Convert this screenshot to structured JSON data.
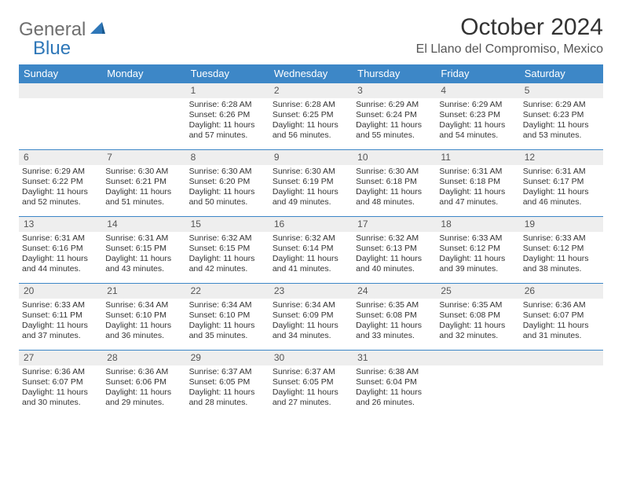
{
  "logo": {
    "word1": "General",
    "word2": "Blue"
  },
  "title": "October 2024",
  "location": "El Llano del Compromiso, Mexico",
  "header_bg": "#3d87c7",
  "daynum_bg": "#eeeeee",
  "weekdays": [
    "Sunday",
    "Monday",
    "Tuesday",
    "Wednesday",
    "Thursday",
    "Friday",
    "Saturday"
  ],
  "weeks": [
    [
      null,
      null,
      {
        "n": "1",
        "sr": "Sunrise: 6:28 AM",
        "ss": "Sunset: 6:26 PM",
        "d1": "Daylight: 11 hours",
        "d2": "and 57 minutes."
      },
      {
        "n": "2",
        "sr": "Sunrise: 6:28 AM",
        "ss": "Sunset: 6:25 PM",
        "d1": "Daylight: 11 hours",
        "d2": "and 56 minutes."
      },
      {
        "n": "3",
        "sr": "Sunrise: 6:29 AM",
        "ss": "Sunset: 6:24 PM",
        "d1": "Daylight: 11 hours",
        "d2": "and 55 minutes."
      },
      {
        "n": "4",
        "sr": "Sunrise: 6:29 AM",
        "ss": "Sunset: 6:23 PM",
        "d1": "Daylight: 11 hours",
        "d2": "and 54 minutes."
      },
      {
        "n": "5",
        "sr": "Sunrise: 6:29 AM",
        "ss": "Sunset: 6:23 PM",
        "d1": "Daylight: 11 hours",
        "d2": "and 53 minutes."
      }
    ],
    [
      {
        "n": "6",
        "sr": "Sunrise: 6:29 AM",
        "ss": "Sunset: 6:22 PM",
        "d1": "Daylight: 11 hours",
        "d2": "and 52 minutes."
      },
      {
        "n": "7",
        "sr": "Sunrise: 6:30 AM",
        "ss": "Sunset: 6:21 PM",
        "d1": "Daylight: 11 hours",
        "d2": "and 51 minutes."
      },
      {
        "n": "8",
        "sr": "Sunrise: 6:30 AM",
        "ss": "Sunset: 6:20 PM",
        "d1": "Daylight: 11 hours",
        "d2": "and 50 minutes."
      },
      {
        "n": "9",
        "sr": "Sunrise: 6:30 AM",
        "ss": "Sunset: 6:19 PM",
        "d1": "Daylight: 11 hours",
        "d2": "and 49 minutes."
      },
      {
        "n": "10",
        "sr": "Sunrise: 6:30 AM",
        "ss": "Sunset: 6:18 PM",
        "d1": "Daylight: 11 hours",
        "d2": "and 48 minutes."
      },
      {
        "n": "11",
        "sr": "Sunrise: 6:31 AM",
        "ss": "Sunset: 6:18 PM",
        "d1": "Daylight: 11 hours",
        "d2": "and 47 minutes."
      },
      {
        "n": "12",
        "sr": "Sunrise: 6:31 AM",
        "ss": "Sunset: 6:17 PM",
        "d1": "Daylight: 11 hours",
        "d2": "and 46 minutes."
      }
    ],
    [
      {
        "n": "13",
        "sr": "Sunrise: 6:31 AM",
        "ss": "Sunset: 6:16 PM",
        "d1": "Daylight: 11 hours",
        "d2": "and 44 minutes."
      },
      {
        "n": "14",
        "sr": "Sunrise: 6:31 AM",
        "ss": "Sunset: 6:15 PM",
        "d1": "Daylight: 11 hours",
        "d2": "and 43 minutes."
      },
      {
        "n": "15",
        "sr": "Sunrise: 6:32 AM",
        "ss": "Sunset: 6:15 PM",
        "d1": "Daylight: 11 hours",
        "d2": "and 42 minutes."
      },
      {
        "n": "16",
        "sr": "Sunrise: 6:32 AM",
        "ss": "Sunset: 6:14 PM",
        "d1": "Daylight: 11 hours",
        "d2": "and 41 minutes."
      },
      {
        "n": "17",
        "sr": "Sunrise: 6:32 AM",
        "ss": "Sunset: 6:13 PM",
        "d1": "Daylight: 11 hours",
        "d2": "and 40 minutes."
      },
      {
        "n": "18",
        "sr": "Sunrise: 6:33 AM",
        "ss": "Sunset: 6:12 PM",
        "d1": "Daylight: 11 hours",
        "d2": "and 39 minutes."
      },
      {
        "n": "19",
        "sr": "Sunrise: 6:33 AM",
        "ss": "Sunset: 6:12 PM",
        "d1": "Daylight: 11 hours",
        "d2": "and 38 minutes."
      }
    ],
    [
      {
        "n": "20",
        "sr": "Sunrise: 6:33 AM",
        "ss": "Sunset: 6:11 PM",
        "d1": "Daylight: 11 hours",
        "d2": "and 37 minutes."
      },
      {
        "n": "21",
        "sr": "Sunrise: 6:34 AM",
        "ss": "Sunset: 6:10 PM",
        "d1": "Daylight: 11 hours",
        "d2": "and 36 minutes."
      },
      {
        "n": "22",
        "sr": "Sunrise: 6:34 AM",
        "ss": "Sunset: 6:10 PM",
        "d1": "Daylight: 11 hours",
        "d2": "and 35 minutes."
      },
      {
        "n": "23",
        "sr": "Sunrise: 6:34 AM",
        "ss": "Sunset: 6:09 PM",
        "d1": "Daylight: 11 hours",
        "d2": "and 34 minutes."
      },
      {
        "n": "24",
        "sr": "Sunrise: 6:35 AM",
        "ss": "Sunset: 6:08 PM",
        "d1": "Daylight: 11 hours",
        "d2": "and 33 minutes."
      },
      {
        "n": "25",
        "sr": "Sunrise: 6:35 AM",
        "ss": "Sunset: 6:08 PM",
        "d1": "Daylight: 11 hours",
        "d2": "and 32 minutes."
      },
      {
        "n": "26",
        "sr": "Sunrise: 6:36 AM",
        "ss": "Sunset: 6:07 PM",
        "d1": "Daylight: 11 hours",
        "d2": "and 31 minutes."
      }
    ],
    [
      {
        "n": "27",
        "sr": "Sunrise: 6:36 AM",
        "ss": "Sunset: 6:07 PM",
        "d1": "Daylight: 11 hours",
        "d2": "and 30 minutes."
      },
      {
        "n": "28",
        "sr": "Sunrise: 6:36 AM",
        "ss": "Sunset: 6:06 PM",
        "d1": "Daylight: 11 hours",
        "d2": "and 29 minutes."
      },
      {
        "n": "29",
        "sr": "Sunrise: 6:37 AM",
        "ss": "Sunset: 6:05 PM",
        "d1": "Daylight: 11 hours",
        "d2": "and 28 minutes."
      },
      {
        "n": "30",
        "sr": "Sunrise: 6:37 AM",
        "ss": "Sunset: 6:05 PM",
        "d1": "Daylight: 11 hours",
        "d2": "and 27 minutes."
      },
      {
        "n": "31",
        "sr": "Sunrise: 6:38 AM",
        "ss": "Sunset: 6:04 PM",
        "d1": "Daylight: 11 hours",
        "d2": "and 26 minutes."
      },
      null,
      null
    ]
  ]
}
